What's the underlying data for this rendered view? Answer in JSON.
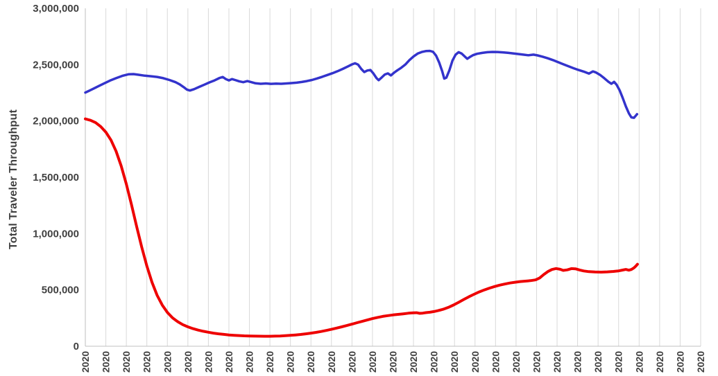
{
  "chart_data": {
    "type": "line",
    "title": "",
    "ylabel": "Total Traveler Throughput",
    "xlabel": "",
    "ylim": [
      0,
      3000000
    ],
    "yticks": [
      0,
      500000,
      1000000,
      1500000,
      2000000,
      2500000,
      3000000
    ],
    "ytick_labels": [
      "0",
      "500,000",
      "1,000,000",
      "1,500,000",
      "2,000,000",
      "2,500,000",
      "3,000,000"
    ],
    "x_tick_label": "2020",
    "x_tick_count": 31,
    "grid": "vertical-major-only",
    "legend_position": "none",
    "colors": {
      "gridline": "#D9D9D9",
      "axis": "#BFBFBF",
      "label": "#404040",
      "background": "#FFFFFF",
      "blue_series": "#3333CC",
      "red_series": "#EE0000"
    },
    "series": [
      {
        "name": "blue-series",
        "color": "#3333CC",
        "stroke_width": 3.5,
        "points": [
          [
            0.0,
            2252000
          ],
          [
            0.3,
            2278000
          ],
          [
            0.6,
            2305000
          ],
          [
            0.9,
            2332000
          ],
          [
            1.2,
            2358000
          ],
          [
            1.5,
            2380000
          ],
          [
            1.8,
            2400000
          ],
          [
            2.1,
            2414000
          ],
          [
            2.35,
            2416000
          ],
          [
            2.6,
            2410000
          ],
          [
            2.9,
            2402000
          ],
          [
            3.2,
            2397000
          ],
          [
            3.5,
            2391000
          ],
          [
            3.8,
            2380000
          ],
          [
            4.1,
            2364000
          ],
          [
            4.4,
            2344000
          ],
          [
            4.6,
            2325000
          ],
          [
            4.8,
            2300000
          ],
          [
            4.95,
            2278000
          ],
          [
            5.1,
            2270000
          ],
          [
            5.3,
            2282000
          ],
          [
            5.55,
            2302000
          ],
          [
            5.8,
            2322000
          ],
          [
            6.05,
            2342000
          ],
          [
            6.3,
            2360000
          ],
          [
            6.55,
            2382000
          ],
          [
            6.7,
            2390000
          ],
          [
            6.85,
            2372000
          ],
          [
            7.0,
            2360000
          ],
          [
            7.15,
            2372000
          ],
          [
            7.3,
            2364000
          ],
          [
            7.5,
            2352000
          ],
          [
            7.7,
            2344000
          ],
          [
            7.9,
            2354000
          ],
          [
            8.1,
            2344000
          ],
          [
            8.3,
            2334000
          ],
          [
            8.55,
            2330000
          ],
          [
            8.8,
            2333000
          ],
          [
            9.05,
            2329000
          ],
          [
            9.3,
            2331000
          ],
          [
            9.55,
            2330000
          ],
          [
            9.8,
            2333000
          ],
          [
            10.05,
            2336000
          ],
          [
            10.3,
            2340000
          ],
          [
            10.55,
            2346000
          ],
          [
            10.8,
            2354000
          ],
          [
            11.05,
            2364000
          ],
          [
            11.3,
            2377000
          ],
          [
            11.55,
            2392000
          ],
          [
            11.8,
            2408000
          ],
          [
            12.05,
            2424000
          ],
          [
            12.3,
            2442000
          ],
          [
            12.55,
            2462000
          ],
          [
            12.8,
            2484000
          ],
          [
            13.0,
            2502000
          ],
          [
            13.15,
            2512000
          ],
          [
            13.3,
            2500000
          ],
          [
            13.45,
            2462000
          ],
          [
            13.6,
            2434000
          ],
          [
            13.75,
            2448000
          ],
          [
            13.9,
            2452000
          ],
          [
            14.05,
            2420000
          ],
          [
            14.2,
            2380000
          ],
          [
            14.3,
            2362000
          ],
          [
            14.45,
            2386000
          ],
          [
            14.6,
            2412000
          ],
          [
            14.75,
            2422000
          ],
          [
            14.9,
            2404000
          ],
          [
            15.05,
            2428000
          ],
          [
            15.2,
            2448000
          ],
          [
            15.4,
            2472000
          ],
          [
            15.6,
            2500000
          ],
          [
            15.8,
            2540000
          ],
          [
            16.0,
            2572000
          ],
          [
            16.2,
            2598000
          ],
          [
            16.4,
            2612000
          ],
          [
            16.6,
            2620000
          ],
          [
            16.8,
            2622000
          ],
          [
            16.95,
            2614000
          ],
          [
            17.1,
            2580000
          ],
          [
            17.25,
            2520000
          ],
          [
            17.4,
            2440000
          ],
          [
            17.5,
            2376000
          ],
          [
            17.6,
            2384000
          ],
          [
            17.75,
            2450000
          ],
          [
            17.9,
            2535000
          ],
          [
            18.05,
            2588000
          ],
          [
            18.2,
            2610000
          ],
          [
            18.35,
            2598000
          ],
          [
            18.5,
            2572000
          ],
          [
            18.62,
            2552000
          ],
          [
            18.75,
            2568000
          ],
          [
            18.9,
            2584000
          ],
          [
            19.1,
            2596000
          ],
          [
            19.35,
            2604000
          ],
          [
            19.6,
            2610000
          ],
          [
            19.85,
            2613000
          ],
          [
            20.1,
            2612000
          ],
          [
            20.35,
            2609000
          ],
          [
            20.6,
            2605000
          ],
          [
            20.85,
            2600000
          ],
          [
            21.1,
            2594000
          ],
          [
            21.35,
            2589000
          ],
          [
            21.6,
            2583000
          ],
          [
            21.85,
            2589000
          ],
          [
            22.05,
            2582000
          ],
          [
            22.3,
            2570000
          ],
          [
            22.55,
            2556000
          ],
          [
            22.8,
            2540000
          ],
          [
            23.05,
            2522000
          ],
          [
            23.3,
            2504000
          ],
          [
            23.55,
            2486000
          ],
          [
            23.8,
            2468000
          ],
          [
            24.05,
            2452000
          ],
          [
            24.3,
            2438000
          ],
          [
            24.55,
            2420000
          ],
          [
            24.75,
            2440000
          ],
          [
            24.9,
            2430000
          ],
          [
            25.1,
            2408000
          ],
          [
            25.3,
            2380000
          ],
          [
            25.5,
            2348000
          ],
          [
            25.65,
            2330000
          ],
          [
            25.78,
            2347000
          ],
          [
            25.9,
            2322000
          ],
          [
            26.05,
            2272000
          ],
          [
            26.2,
            2205000
          ],
          [
            26.35,
            2130000
          ],
          [
            26.5,
            2068000
          ],
          [
            26.62,
            2032000
          ],
          [
            26.75,
            2028000
          ],
          [
            26.9,
            2060000
          ]
        ]
      },
      {
        "name": "red-series",
        "color": "#EE0000",
        "stroke_width": 4,
        "points": [
          [
            0.0,
            2018000
          ],
          [
            0.25,
            2006000
          ],
          [
            0.5,
            1985000
          ],
          [
            0.75,
            1950000
          ],
          [
            1.0,
            1900000
          ],
          [
            1.25,
            1830000
          ],
          [
            1.5,
            1732000
          ],
          [
            1.75,
            1600000
          ],
          [
            2.0,
            1440000
          ],
          [
            2.25,
            1258000
          ],
          [
            2.5,
            1065000
          ],
          [
            2.75,
            880000
          ],
          [
            3.0,
            712000
          ],
          [
            3.25,
            568000
          ],
          [
            3.5,
            452000
          ],
          [
            3.75,
            365000
          ],
          [
            4.0,
            300000
          ],
          [
            4.25,
            252000
          ],
          [
            4.5,
            218000
          ],
          [
            4.75,
            192000
          ],
          [
            5.0,
            172000
          ],
          [
            5.25,
            156000
          ],
          [
            5.5,
            143000
          ],
          [
            5.75,
            133000
          ],
          [
            6.0,
            124000
          ],
          [
            6.25,
            116000
          ],
          [
            6.5,
            110000
          ],
          [
            6.75,
            105000
          ],
          [
            7.0,
            100000
          ],
          [
            7.25,
            97000
          ],
          [
            7.5,
            94500
          ],
          [
            7.75,
            92500
          ],
          [
            8.0,
            91000
          ],
          [
            8.25,
            90000
          ],
          [
            8.5,
            89200
          ],
          [
            8.75,
            88800
          ],
          [
            9.0,
            88800
          ],
          [
            9.25,
            89500
          ],
          [
            9.5,
            91000
          ],
          [
            9.75,
            93500
          ],
          [
            10.0,
            96500
          ],
          [
            10.25,
            100000
          ],
          [
            10.5,
            104500
          ],
          [
            10.75,
            110000
          ],
          [
            11.0,
            116000
          ],
          [
            11.25,
            123000
          ],
          [
            11.5,
            131000
          ],
          [
            11.75,
            140000
          ],
          [
            12.0,
            150000
          ],
          [
            12.25,
            161000
          ],
          [
            12.5,
            172000
          ],
          [
            12.75,
            184000
          ],
          [
            13.0,
            196000
          ],
          [
            13.25,
            209000
          ],
          [
            13.5,
            221000
          ],
          [
            13.75,
            233000
          ],
          [
            14.0,
            245000
          ],
          [
            14.25,
            256000
          ],
          [
            14.5,
            265000
          ],
          [
            14.75,
            272000
          ],
          [
            15.0,
            278000
          ],
          [
            15.25,
            283000
          ],
          [
            15.5,
            288000
          ],
          [
            15.75,
            293000
          ],
          [
            16.0,
            296500
          ],
          [
            16.15,
            297500
          ],
          [
            16.3,
            292000
          ],
          [
            16.45,
            294000
          ],
          [
            16.6,
            298000
          ],
          [
            16.8,
            302000
          ],
          [
            17.0,
            308000
          ],
          [
            17.2,
            316000
          ],
          [
            17.45,
            328000
          ],
          [
            17.7,
            345000
          ],
          [
            17.95,
            366000
          ],
          [
            18.2,
            390000
          ],
          [
            18.45,
            415000
          ],
          [
            18.7,
            439000
          ],
          [
            18.95,
            461000
          ],
          [
            19.2,
            482000
          ],
          [
            19.45,
            500000
          ],
          [
            19.7,
            516000
          ],
          [
            19.95,
            530000
          ],
          [
            20.2,
            542000
          ],
          [
            20.45,
            552000
          ],
          [
            20.7,
            561000
          ],
          [
            20.95,
            568000
          ],
          [
            21.2,
            574000
          ],
          [
            21.45,
            578000
          ],
          [
            21.7,
            582000
          ],
          [
            21.95,
            589000
          ],
          [
            22.15,
            606000
          ],
          [
            22.35,
            636000
          ],
          [
            22.55,
            663000
          ],
          [
            22.75,
            681000
          ],
          [
            22.95,
            690000
          ],
          [
            23.15,
            683000
          ],
          [
            23.3,
            673000
          ],
          [
            23.5,
            678000
          ],
          [
            23.7,
            689000
          ],
          [
            23.9,
            687000
          ],
          [
            24.1,
            677000
          ],
          [
            24.3,
            668000
          ],
          [
            24.55,
            662000
          ],
          [
            24.85,
            659000
          ],
          [
            25.15,
            658000
          ],
          [
            25.45,
            660000
          ],
          [
            25.75,
            664000
          ],
          [
            26.0,
            669000
          ],
          [
            26.2,
            676000
          ],
          [
            26.35,
            682000
          ],
          [
            26.5,
            675000
          ],
          [
            26.62,
            681000
          ],
          [
            26.75,
            696000
          ],
          [
            26.85,
            714000
          ],
          [
            26.92,
            728000
          ]
        ]
      }
    ]
  }
}
